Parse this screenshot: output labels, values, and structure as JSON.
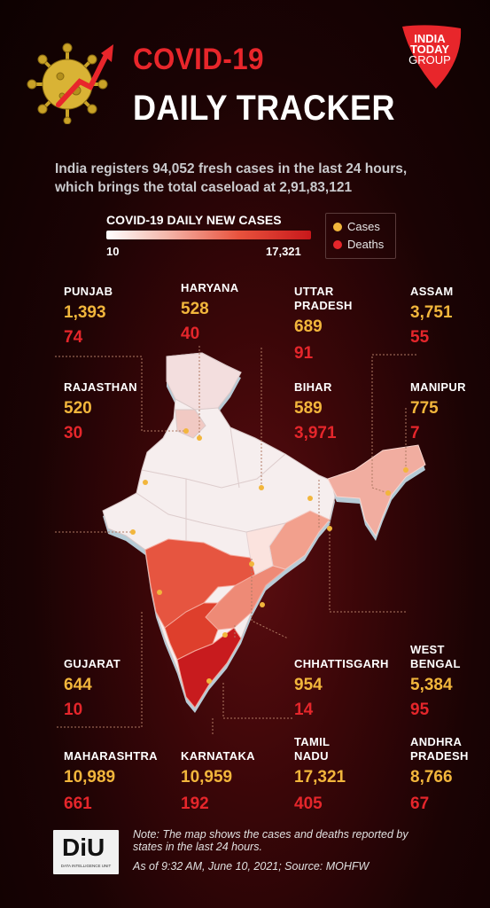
{
  "header": {
    "title_line1": "COVID-19",
    "title_line2": "DAILY TRACKER",
    "logo_line1": "INDIA",
    "logo_line2": "TODAY",
    "logo_line3": "GROUP"
  },
  "summary": {
    "line1": "India registers 94,052 fresh cases in the last 24 hours,",
    "line2": "which brings the total caseload at 2,91,83,121"
  },
  "legend": {
    "title": "COVID-19 DAILY NEW CASES",
    "min": "10",
    "max": "17,321",
    "cases_label": "Cases",
    "deaths_label": "Deaths",
    "cases_color": "#f2b63c",
    "deaths_color": "#e5262b"
  },
  "states": [
    {
      "name": "PUNJAB",
      "cases": "1,393",
      "deaths": "74"
    },
    {
      "name": "HARYANA",
      "cases": "528",
      "deaths": "40"
    },
    {
      "name": "UTTAR PRADESH",
      "cases": "689",
      "deaths": "91"
    },
    {
      "name": "ASSAM",
      "cases": "3,751",
      "deaths": "55"
    },
    {
      "name": "RAJASTHAN",
      "cases": "520",
      "deaths": "30"
    },
    {
      "name": "BIHAR",
      "cases": "589",
      "deaths": "3,971"
    },
    {
      "name": "MANIPUR",
      "cases": "775",
      "deaths": "7"
    },
    {
      "name": "GUJARAT",
      "cases": "644",
      "deaths": "10"
    },
    {
      "name": "CHHATTISGARH",
      "cases": "954",
      "deaths": "14"
    },
    {
      "name": "WEST BENGAL",
      "cases": "5,384",
      "deaths": "95"
    },
    {
      "name": "MAHARASHTRA",
      "cases": "10,989",
      "deaths": "661"
    },
    {
      "name": "KARNATAKA",
      "cases": "10,959",
      "deaths": "192"
    },
    {
      "name": "TAMIL NADU",
      "cases": "17,321",
      "deaths": "405"
    },
    {
      "name": "ANDHRA PRADESH",
      "cases": "8,766",
      "deaths": "67"
    }
  ],
  "state_labels": {
    "uttar_pradesh_1": "UTTAR",
    "uttar_pradesh_2": "PRADESH",
    "west_bengal_1": "WEST",
    "west_bengal_2": "BENGAL",
    "tamil_nadu_1": "TAMIL",
    "tamil_nadu_2": "NADU",
    "andhra_pradesh_1": "ANDHRA",
    "andhra_pradesh_2": "PRADESH"
  },
  "footer": {
    "badge": "DiU",
    "badge_sub": "DATA INTELLIGENCE UNIT",
    "note_line1": "Note: The map shows the cases and deaths reported by",
    "note_line2": "states in the last 24 hours.",
    "as_of": "As of 9:32 AM, June 10, 2021; Source: MOHFW"
  }
}
